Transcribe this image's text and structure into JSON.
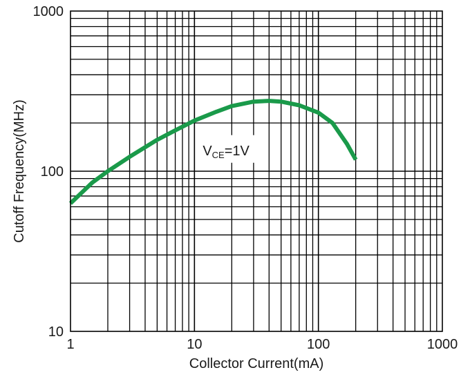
{
  "chart_data": {
    "type": "line",
    "title": "",
    "xlabel": "Collector Current(mA)",
    "ylabel": "Cutoff Frequency(MHz)",
    "x_scale": "log",
    "y_scale": "log",
    "xlim": [
      1,
      1000
    ],
    "ylim": [
      10,
      1000
    ],
    "x_ticks": [
      {
        "value": 1,
        "label": "1"
      },
      {
        "value": 10,
        "label": "10"
      },
      {
        "value": 100,
        "label": "100"
      },
      {
        "value": 1000,
        "label": "1000"
      }
    ],
    "y_ticks": [
      {
        "value": 10,
        "label": "10"
      },
      {
        "value": 100,
        "label": "100"
      },
      {
        "value": 1000,
        "label": "1000"
      }
    ],
    "grid": true,
    "series": [
      {
        "color": "#1a9a4a",
        "x": [
          1,
          1.5,
          2,
          3,
          5,
          7,
          10,
          15,
          20,
          30,
          40,
          50,
          70,
          100,
          130,
          170,
          200
        ],
        "y": [
          63,
          85,
          100,
          123,
          157,
          180,
          207,
          235,
          255,
          272,
          275,
          272,
          258,
          232,
          200,
          148,
          118
        ]
      }
    ],
    "annotation": {
      "main": "V",
      "subscript": "CE",
      "suffix": "=1V",
      "x": 10,
      "y": 135
    }
  }
}
